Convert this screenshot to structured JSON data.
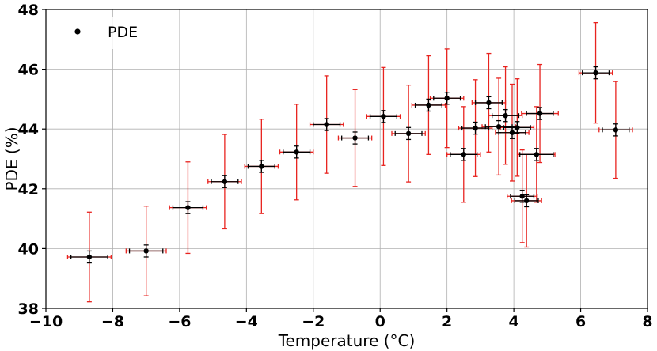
{
  "chart_data": {
    "type": "scatter",
    "xlabel": "Temperature (°C)",
    "ylabel": "PDE (%)",
    "xlim": [
      -10,
      8
    ],
    "ylim": [
      38,
      48
    ],
    "xticks": [
      -10,
      -8,
      -6,
      -4,
      -2,
      0,
      2,
      4,
      6,
      8
    ],
    "yticks": [
      38,
      40,
      42,
      44,
      46,
      48
    ],
    "xtick_labels": [
      "−10",
      "−8",
      "−6",
      "−4",
      "−2",
      "0",
      "2",
      "4",
      "6",
      "8"
    ],
    "ytick_labels": [
      "38",
      "40",
      "42",
      "44",
      "46",
      "48"
    ],
    "grid": true,
    "legend": {
      "position": "top-left",
      "entries": [
        "PDE"
      ]
    },
    "colors": {
      "points": "#000000",
      "stat_error": "#000000",
      "sys_error": "#e8231f",
      "grid": "#b0b0b0"
    },
    "series": [
      {
        "name": "PDE",
        "points": [
          {
            "x": -8.7,
            "y": 39.72,
            "xerr_sys": 0.65,
            "xerr_stat": 0.55,
            "yerr_sys": 1.5,
            "yerr_stat": 0.2
          },
          {
            "x": -7.0,
            "y": 39.92,
            "xerr_sys": 0.6,
            "xerr_stat": 0.5,
            "yerr_sys": 1.5,
            "yerr_stat": 0.2
          },
          {
            "x": -5.75,
            "y": 41.37,
            "xerr_sys": 0.55,
            "xerr_stat": 0.45,
            "yerr_sys": 1.53,
            "yerr_stat": 0.2
          },
          {
            "x": -4.65,
            "y": 42.24,
            "xerr_sys": 0.5,
            "xerr_stat": 0.4,
            "yerr_sys": 1.58,
            "yerr_stat": 0.2
          },
          {
            "x": -3.55,
            "y": 42.75,
            "xerr_sys": 0.5,
            "xerr_stat": 0.4,
            "yerr_sys": 1.58,
            "yerr_stat": 0.2
          },
          {
            "x": -2.5,
            "y": 43.23,
            "xerr_sys": 0.5,
            "xerr_stat": 0.4,
            "yerr_sys": 1.6,
            "yerr_stat": 0.2
          },
          {
            "x": -1.6,
            "y": 44.15,
            "xerr_sys": 0.5,
            "xerr_stat": 0.4,
            "yerr_sys": 1.63,
            "yerr_stat": 0.2
          },
          {
            "x": -0.75,
            "y": 43.7,
            "xerr_sys": 0.5,
            "xerr_stat": 0.4,
            "yerr_sys": 1.62,
            "yerr_stat": 0.2
          },
          {
            "x": 0.1,
            "y": 44.42,
            "xerr_sys": 0.5,
            "xerr_stat": 0.4,
            "yerr_sys": 1.64,
            "yerr_stat": 0.2
          },
          {
            "x": 0.85,
            "y": 43.85,
            "xerr_sys": 0.5,
            "xerr_stat": 0.4,
            "yerr_sys": 1.62,
            "yerr_stat": 0.2
          },
          {
            "x": 1.45,
            "y": 44.8,
            "xerr_sys": 0.5,
            "xerr_stat": 0.4,
            "yerr_sys": 1.65,
            "yerr_stat": 0.2
          },
          {
            "x": 2.0,
            "y": 45.03,
            "xerr_sys": 0.5,
            "xerr_stat": 0.4,
            "yerr_sys": 1.65,
            "yerr_stat": 0.2
          },
          {
            "x": 2.5,
            "y": 43.15,
            "xerr_sys": 0.5,
            "xerr_stat": 0.4,
            "yerr_sys": 1.6,
            "yerr_stat": 0.2
          },
          {
            "x": 2.85,
            "y": 44.03,
            "xerr_sys": 0.5,
            "xerr_stat": 0.4,
            "yerr_sys": 1.62,
            "yerr_stat": 0.2
          },
          {
            "x": 3.25,
            "y": 44.88,
            "xerr_sys": 0.5,
            "xerr_stat": 0.4,
            "yerr_sys": 1.65,
            "yerr_stat": 0.2
          },
          {
            "x": 3.55,
            "y": 44.08,
            "xerr_sys": 0.5,
            "xerr_stat": 0.4,
            "yerr_sys": 1.62,
            "yerr_stat": 0.2
          },
          {
            "x": 3.75,
            "y": 44.45,
            "xerr_sys": 0.5,
            "xerr_stat": 0.4,
            "yerr_sys": 1.63,
            "yerr_stat": 0.2
          },
          {
            "x": 3.95,
            "y": 43.88,
            "xerr_sys": 0.5,
            "xerr_stat": 0.4,
            "yerr_sys": 1.62,
            "yerr_stat": 0.2
          },
          {
            "x": 4.1,
            "y": 44.05,
            "xerr_sys": 0.5,
            "xerr_stat": 0.4,
            "yerr_sys": 1.63,
            "yerr_stat": 0.2
          },
          {
            "x": 4.25,
            "y": 41.75,
            "xerr_sys": 0.45,
            "xerr_stat": 0.35,
            "yerr_sys": 1.55,
            "yerr_stat": 0.2
          },
          {
            "x": 4.38,
            "y": 41.6,
            "xerr_sys": 0.45,
            "xerr_stat": 0.35,
            "yerr_sys": 1.55,
            "yerr_stat": 0.2
          },
          {
            "x": 4.68,
            "y": 43.15,
            "xerr_sys": 0.55,
            "xerr_stat": 0.5,
            "yerr_sys": 1.6,
            "yerr_stat": 0.2
          },
          {
            "x": 4.78,
            "y": 44.52,
            "xerr_sys": 0.55,
            "xerr_stat": 0.4,
            "yerr_sys": 1.64,
            "yerr_stat": 0.2
          },
          {
            "x": 6.45,
            "y": 45.88,
            "xerr_sys": 0.5,
            "xerr_stat": 0.4,
            "yerr_sys": 1.68,
            "yerr_stat": 0.2
          },
          {
            "x": 7.05,
            "y": 43.97,
            "xerr_sys": 0.5,
            "xerr_stat": 0.4,
            "yerr_sys": 1.62,
            "yerr_stat": 0.2
          }
        ]
      }
    ]
  }
}
